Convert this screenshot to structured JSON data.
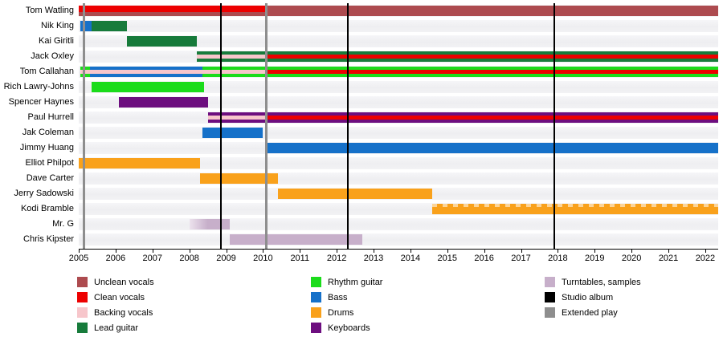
{
  "colors": {
    "unclean_vocals": "#AD4B4F",
    "clean_vocals": "#ED0000",
    "backing_vocals": "#F7C6CB",
    "lead_guitar": "#177B3B",
    "rhythm_guitar": "#1BDC1B",
    "bass": "#1671C9",
    "drums": "#F9A11B",
    "keyboards": "#6D0E7F",
    "turntables_samples": "#C7AFCA",
    "studio_album": "#000000",
    "extended_play": "#8E8E8E",
    "lane_background": "#F1F1F3",
    "axis": "#000000"
  },
  "chart_data": {
    "type": "timeline",
    "title": "",
    "x_axis": {
      "min": 2005,
      "max": 2022.35,
      "ticks": [
        2005,
        2006,
        2007,
        2008,
        2009,
        2010,
        2011,
        2012,
        2013,
        2014,
        2015,
        2016,
        2017,
        2018,
        2019,
        2020,
        2021,
        2022
      ],
      "grid": false
    },
    "members": [
      {
        "name": "Tom Watling",
        "segments": [
          {
            "role": "unclean_vocals",
            "start": 2005,
            "end": 2022.35,
            "layer": "full"
          },
          {
            "role": "clean_vocals",
            "start": 2005,
            "end": 2010.1,
            "layer": "top"
          }
        ]
      },
      {
        "name": "Nik King",
        "segments": [
          {
            "role": "bass",
            "start": 2005.05,
            "end": 2005.35,
            "layer": "full"
          },
          {
            "role": "lead_guitar",
            "start": 2005.35,
            "end": 2006.3,
            "layer": "full"
          }
        ]
      },
      {
        "name": "Kai Giritli",
        "segments": [
          {
            "role": "lead_guitar",
            "start": 2006.3,
            "end": 2008.2,
            "layer": "full"
          }
        ]
      },
      {
        "name": "Jack Oxley",
        "segments": [
          {
            "role": "lead_guitar",
            "start": 2008.2,
            "end": 2022.35,
            "layer": "full"
          },
          {
            "role": "backing_vocals",
            "start": 2008.2,
            "end": 2010.1,
            "layer": "mid"
          },
          {
            "role": "clean_vocals",
            "start": 2010.1,
            "end": 2022.35,
            "layer": "mid"
          }
        ]
      },
      {
        "name": "Tom Callahan",
        "segments": [
          {
            "role": "rhythm_guitar",
            "start": 2005.05,
            "end": 2005.3,
            "layer": "full"
          },
          {
            "role": "bass",
            "start": 2005.3,
            "end": 2008.35,
            "layer": "full"
          },
          {
            "role": "rhythm_guitar",
            "start": 2008.35,
            "end": 2022.35,
            "layer": "full"
          },
          {
            "role": "backing_vocals",
            "start": 2005.05,
            "end": 2010.1,
            "layer": "mid"
          },
          {
            "role": "clean_vocals",
            "start": 2010.1,
            "end": 2022.35,
            "layer": "mid"
          }
        ]
      },
      {
        "name": "Rich Lawry-Johns",
        "segments": [
          {
            "role": "rhythm_guitar",
            "start": 2005.35,
            "end": 2008.4,
            "layer": "full"
          }
        ]
      },
      {
        "name": "Spencer Haynes",
        "segments": [
          {
            "role": "keyboards",
            "start": 2006.1,
            "end": 2008.5,
            "layer": "full"
          }
        ]
      },
      {
        "name": "Paul Hurrell",
        "segments": [
          {
            "role": "keyboards",
            "start": 2008.5,
            "end": 2022.35,
            "layer": "full"
          },
          {
            "role": "backing_vocals",
            "start": 2008.5,
            "end": 2010.1,
            "layer": "mid"
          },
          {
            "role": "clean_vocals",
            "start": 2010.1,
            "end": 2022.35,
            "layer": "mid"
          }
        ]
      },
      {
        "name": "Jak Coleman",
        "segments": [
          {
            "role": "bass",
            "start": 2008.35,
            "end": 2010.0,
            "layer": "full"
          }
        ]
      },
      {
        "name": "Jimmy Huang",
        "segments": [
          {
            "role": "bass",
            "start": 2010.1,
            "end": 2022.35,
            "layer": "full"
          }
        ]
      },
      {
        "name": "Elliot Philpot",
        "segments": [
          {
            "role": "drums",
            "start": 2005,
            "end": 2008.3,
            "layer": "full"
          }
        ]
      },
      {
        "name": "Dave Carter",
        "segments": [
          {
            "role": "drums",
            "start": 2008.3,
            "end": 2010.4,
            "layer": "full"
          }
        ]
      },
      {
        "name": "Jerry Sadowski",
        "segments": [
          {
            "role": "drums",
            "start": 2010.4,
            "end": 2014.6,
            "layer": "full"
          }
        ]
      },
      {
        "name": "Kodi Bramble",
        "segments": [
          {
            "role": "drums",
            "start": 2014.6,
            "end": 2022.35,
            "layer": "full",
            "hatch": true
          }
        ]
      },
      {
        "name": "Mr. G",
        "segments": [
          {
            "role": "turntables_samples",
            "start": 2008.0,
            "end": 2009.1,
            "layer": "full",
            "fade_left": true
          }
        ]
      },
      {
        "name": "Chris Kipster",
        "segments": [
          {
            "role": "turntables_samples",
            "start": 2009.1,
            "end": 2012.7,
            "layer": "full"
          }
        ]
      }
    ],
    "release_lines": [
      {
        "year": 2005.15,
        "type": "extended_play"
      },
      {
        "year": 2008.85,
        "type": "studio_album"
      },
      {
        "year": 2010.1,
        "type": "extended_play"
      },
      {
        "year": 2012.3,
        "type": "studio_album"
      },
      {
        "year": 2017.9,
        "type": "studio_album"
      }
    ]
  },
  "legend": {
    "columns": [
      [
        {
          "role": "unclean_vocals",
          "label": "Unclean vocals"
        },
        {
          "role": "clean_vocals",
          "label": "Clean vocals"
        },
        {
          "role": "backing_vocals",
          "label": "Backing vocals"
        },
        {
          "role": "lead_guitar",
          "label": "Lead guitar"
        }
      ],
      [
        {
          "role": "rhythm_guitar",
          "label": "Rhythm guitar"
        },
        {
          "role": "bass",
          "label": "Bass"
        },
        {
          "role": "drums",
          "label": "Drums"
        },
        {
          "role": "keyboards",
          "label": "Keyboards"
        }
      ],
      [
        {
          "role": "turntables_samples",
          "label": "Turntables, samples"
        },
        {
          "role": "studio_album",
          "label": "Studio album"
        },
        {
          "role": "extended_play",
          "label": "Extended play"
        }
      ]
    ]
  }
}
